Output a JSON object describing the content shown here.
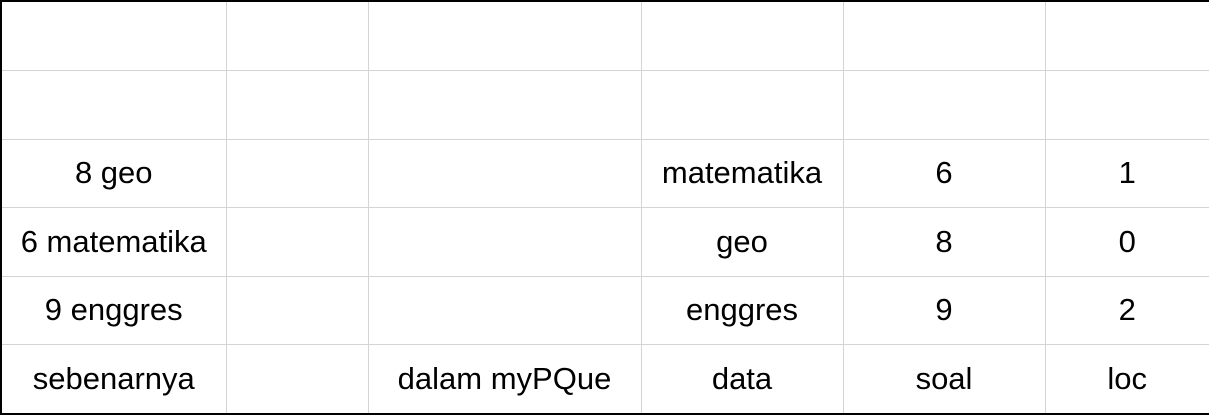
{
  "sheet": {
    "rows": [
      [
        "",
        "",
        "",
        "",
        "",
        ""
      ],
      [
        "",
        "",
        "",
        "",
        "",
        ""
      ],
      [
        "8 geo",
        "",
        "",
        "matematika",
        "6",
        "1"
      ],
      [
        "6 matematika",
        "",
        "",
        "geo",
        "8",
        "0"
      ],
      [
        "9 enggres",
        "",
        "",
        "enggres",
        "9",
        "2"
      ],
      [
        "sebenarnya",
        "",
        "dalam myPQue",
        "data",
        "soal",
        "loc"
      ]
    ]
  }
}
